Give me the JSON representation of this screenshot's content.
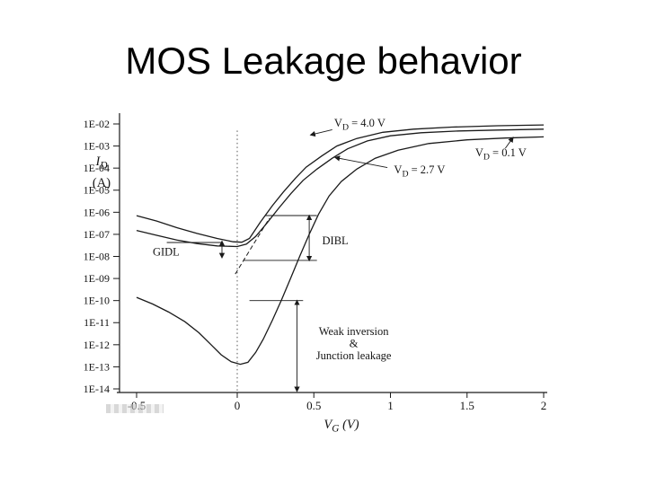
{
  "slide": {
    "title": "MOS Leakage behavior"
  },
  "chart_data": {
    "type": "line",
    "xlabel": "V_G (V)",
    "ylabel": "I_D",
    "ylabel_unit": "(A)",
    "x_axis": {
      "min": -0.5,
      "max": 2
    },
    "y_axis": {
      "scale": "log",
      "min_exp": -14,
      "max_exp": -2
    },
    "x_ticks": [
      {
        "value": -0.5,
        "label": "-0.5"
      },
      {
        "value": 0,
        "label": "0"
      },
      {
        "value": 0.5,
        "label": "0.5"
      },
      {
        "value": 1,
        "label": "1"
      },
      {
        "value": 1.5,
        "label": "1.5"
      },
      {
        "value": 2,
        "label": "2"
      }
    ],
    "y_ticks": [
      {
        "exp": -2,
        "label": "1E-02"
      },
      {
        "exp": -3,
        "label": "1E-03"
      },
      {
        "exp": -4,
        "label": "1E-04"
      },
      {
        "exp": -5,
        "label": "1E-05"
      },
      {
        "exp": -6,
        "label": "1E-06"
      },
      {
        "exp": -7,
        "label": "1E-07"
      },
      {
        "exp": -8,
        "label": "1E-08"
      },
      {
        "exp": -9,
        "label": "1E-09"
      },
      {
        "exp": -10,
        "label": "1E-10"
      },
      {
        "exp": -11,
        "label": "1E-11"
      },
      {
        "exp": -12,
        "label": "1E-12"
      },
      {
        "exp": -13,
        "label": "1E-13"
      },
      {
        "exp": -14,
        "label": "1E-14"
      }
    ],
    "reference_line": {
      "x": 0,
      "style": "dotted"
    },
    "series": [
      {
        "id": "vd-4-0",
        "name": "VD = 4.0 V",
        "style": "solid",
        "points": [
          [
            -0.5,
            7e-07
          ],
          [
            -0.4,
            4e-07
          ],
          [
            -0.3,
            2e-07
          ],
          [
            -0.2,
            1.1e-07
          ],
          [
            -0.1,
            6.5e-08
          ],
          [
            -0.02,
            4.6e-08
          ],
          [
            0.03,
            4.4e-08
          ],
          [
            0.08,
            6.5e-08
          ],
          [
            0.15,
            3.5e-07
          ],
          [
            0.23,
            2e-06
          ],
          [
            0.3,
            8e-06
          ],
          [
            0.38,
            3.5e-05
          ],
          [
            0.45,
            0.00011
          ],
          [
            0.55,
            0.00035
          ],
          [
            0.65,
            0.001
          ],
          [
            0.78,
            0.0022
          ],
          [
            0.95,
            0.0042
          ],
          [
            1.15,
            0.0058
          ],
          [
            1.4,
            0.0072
          ],
          [
            1.7,
            0.0083
          ],
          [
            2,
            0.009
          ]
        ]
      },
      {
        "id": "vd-2-7",
        "name": "VD = 2.7 V",
        "style": "solid",
        "points": [
          [
            -0.5,
            1.5e-07
          ],
          [
            -0.4,
            9e-08
          ],
          [
            -0.3,
            5.5e-08
          ],
          [
            -0.2,
            3.8e-08
          ],
          [
            -0.1,
            3e-08
          ],
          [
            0,
            2.8e-08
          ],
          [
            0.06,
            3.6e-08
          ],
          [
            0.12,
            8e-08
          ],
          [
            0.19,
            3e-07
          ],
          [
            0.27,
            1.5e-06
          ],
          [
            0.35,
            7e-06
          ],
          [
            0.43,
            2.8e-05
          ],
          [
            0.52,
            9e-05
          ],
          [
            0.62,
            0.00028
          ],
          [
            0.72,
            0.00075
          ],
          [
            0.85,
            0.0017
          ],
          [
            1,
            0.0029
          ],
          [
            1.2,
            0.004
          ],
          [
            1.45,
            0.0048
          ],
          [
            1.7,
            0.0053
          ],
          [
            2,
            0.0058
          ]
        ]
      },
      {
        "id": "vd-0-1",
        "name": "VD = 0.1 V",
        "style": "solid",
        "points": [
          [
            -0.5,
            1.4e-10
          ],
          [
            -0.42,
            7e-11
          ],
          [
            -0.34,
            3e-11
          ],
          [
            -0.26,
            1.1e-11
          ],
          [
            -0.19,
            3.5e-12
          ],
          [
            -0.13,
            1e-12
          ],
          [
            -0.08,
            3.5e-13
          ],
          [
            -0.03,
            1.7e-13
          ],
          [
            0.02,
            1.3e-13
          ],
          [
            0.07,
            1.6e-13
          ],
          [
            0.12,
            4.5e-13
          ],
          [
            0.17,
            1.8e-12
          ],
          [
            0.23,
            1.3e-11
          ],
          [
            0.29,
            1.1e-10
          ],
          [
            0.35,
            1.1e-09
          ],
          [
            0.41,
            1.1e-08
          ],
          [
            0.47,
            1e-07
          ],
          [
            0.53,
            8e-07
          ],
          [
            0.6,
            5.5e-06
          ],
          [
            0.68,
            2.5e-05
          ],
          [
            0.78,
            9e-05
          ],
          [
            0.9,
            0.00028
          ],
          [
            1.05,
            0.00065
          ],
          [
            1.25,
            0.0013
          ],
          [
            1.5,
            0.0019
          ],
          [
            1.75,
            0.0023
          ],
          [
            2,
            0.0026
          ]
        ]
      },
      {
        "id": "extrapolation",
        "name": "extrapolated subthreshold",
        "style": "dashed",
        "points": [
          [
            -0.01,
            1.6e-09
          ],
          [
            0.21,
            5.4e-07
          ]
        ]
      }
    ],
    "curve_labels": [
      {
        "id": "vd40-label",
        "text": "V_D = 4.0 V",
        "at": [
          0.8,
          0.0075
        ],
        "arrow_from": [
          0.62,
          0.0055
        ],
        "arrow_to": [
          0.48,
          0.0032
        ]
      },
      {
        "id": "vd01-label",
        "text": "V_D = 0.1 V",
        "at": [
          1.72,
          0.00034
        ],
        "arrow_from": [
          1.75,
          0.0008
        ],
        "arrow_to": [
          1.8,
          0.0024
        ]
      },
      {
        "id": "vd27-label",
        "text": "V_D = 2.7 V",
        "at": [
          1.19,
          5.8e-05
        ],
        "arrow_from": [
          0.98,
          0.000105
        ],
        "arrow_to": [
          0.64,
          0.0003
        ]
      }
    ],
    "annotations": [
      {
        "id": "gidl",
        "label_lines": [
          "GIDL"
        ],
        "text_at": [
          -0.353,
          -7.95
        ],
        "lines": [
          [
            [
              -0.35,
              -7.37
            ],
            [
              -0.076,
              -7.37
            ]
          ]
        ],
        "arrows": [
          [
            [
              -0.076,
              -7.32
            ],
            [
              -0.076,
              -8.05
            ]
          ]
        ]
      },
      {
        "id": "dibl",
        "label_lines": [
          "DIBL"
        ],
        "text_at": [
          0.64,
          -7.45
        ],
        "lines": [
          [
            [
              0.18,
              -6.15
            ],
            [
              0.52,
              -6.15
            ]
          ],
          [
            [
              0.04,
              -8.18
            ],
            [
              0.52,
              -8.18
            ]
          ]
        ],
        "arrows": [
          [
            [
              0.47,
              -6.15
            ],
            [
              0.47,
              -8.18
            ]
          ]
        ]
      },
      {
        "id": "weak-inversion",
        "label_lines": [
          "Weak inversion",
          "&",
          "Junction leakage"
        ],
        "text_at": [
          0.76,
          -11.55
        ],
        "lines": [
          [
            [
              0.08,
              -10.0
            ],
            [
              0.43,
              -10.0
            ]
          ]
        ],
        "arrows": [
          [
            [
              0.39,
              -10.0
            ],
            [
              0.39,
              -14.1
            ]
          ]
        ]
      }
    ]
  }
}
